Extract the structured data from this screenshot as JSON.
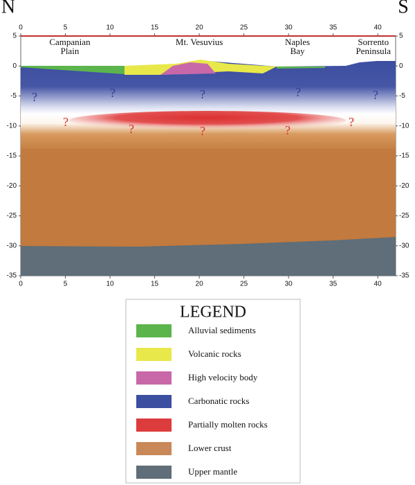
{
  "compass": {
    "north": "N",
    "south": "S"
  },
  "locations": [
    {
      "lines": [
        "Campanian",
        "Plain"
      ],
      "x": 5.5
    },
    {
      "lines": [
        "Mt. Vesuvius"
      ],
      "x": 20
    },
    {
      "lines": [
        "Naples",
        "Bay"
      ],
      "x": 31
    },
    {
      "lines": [
        "Sorrento",
        "Peninsula"
      ],
      "x": 39.5
    }
  ],
  "axes": {
    "x_ticks": [
      0,
      5,
      10,
      15,
      20,
      25,
      30,
      35,
      40
    ],
    "y_ticks": [
      5,
      0,
      -5,
      -10,
      -15,
      -20,
      -25,
      -30,
      -35
    ]
  },
  "unknown_marks": {
    "carbonatic": [
      "?",
      "?",
      "?",
      "?",
      "?"
    ],
    "molten": [
      "?",
      "?",
      "?",
      "?",
      "?"
    ]
  },
  "legend": {
    "title": "LEGEND",
    "items": [
      {
        "label": "Alluvial sediments",
        "color": "#5cb54c"
      },
      {
        "label": "Volcanic rocks",
        "color": "#e8e84a"
      },
      {
        "label": "High velocity body",
        "color": "#c868a8"
      },
      {
        "label": "Carbonatic rocks",
        "color": "#3c4ea0"
      },
      {
        "label": "Partially molten rocks",
        "color": "#dc3c3c"
      },
      {
        "label": "Lower crust",
        "color": "#c88858"
      },
      {
        "label": "Upper mantle",
        "color": "#5f6e78"
      }
    ]
  }
}
